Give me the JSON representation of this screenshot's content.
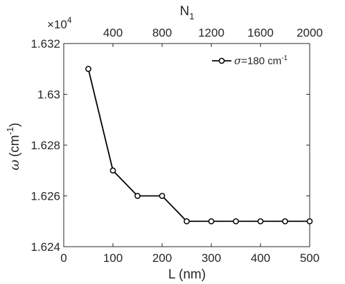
{
  "chart_data": {
    "type": "line",
    "title": "",
    "xlabel": "L (nm)",
    "ylabel_symbol": "ω",
    "ylabel_unit_base": "(cm",
    "ylabel_unit_exp": "-1",
    "ylabel_unit_close": ")",
    "y_multiplier_prefix": "×10",
    "y_multiplier_exp": "4",
    "top_xlabel_base": "N",
    "top_xlabel_sub": "1",
    "xlim": [
      0,
      500
    ],
    "ylim": [
      1.624,
      1.632
    ],
    "xticks": [
      0,
      100,
      200,
      300,
      400,
      500
    ],
    "yticks": [
      1.624,
      1.626,
      1.628,
      1.63,
      1.632
    ],
    "ytick_labels": [
      "1.624",
      "1.626",
      "1.628",
      "1.63",
      "1.632"
    ],
    "top_xlim": [
      0,
      2000
    ],
    "top_xticks": [
      400,
      800,
      1200,
      1600,
      2000
    ],
    "grid": false,
    "legend_position": "top-right",
    "series": [
      {
        "legend_symbol": "σ",
        "legend_text": "=180 cm",
        "legend_exp": "-1",
        "color": "#000000",
        "marker": "open-circle",
        "x": [
          50,
          100,
          150,
          200,
          250,
          300,
          350,
          400,
          450,
          500
        ],
        "y": [
          1.631,
          1.627,
          1.626,
          1.626,
          1.625,
          1.625,
          1.625,
          1.625,
          1.625,
          1.625
        ]
      }
    ]
  }
}
